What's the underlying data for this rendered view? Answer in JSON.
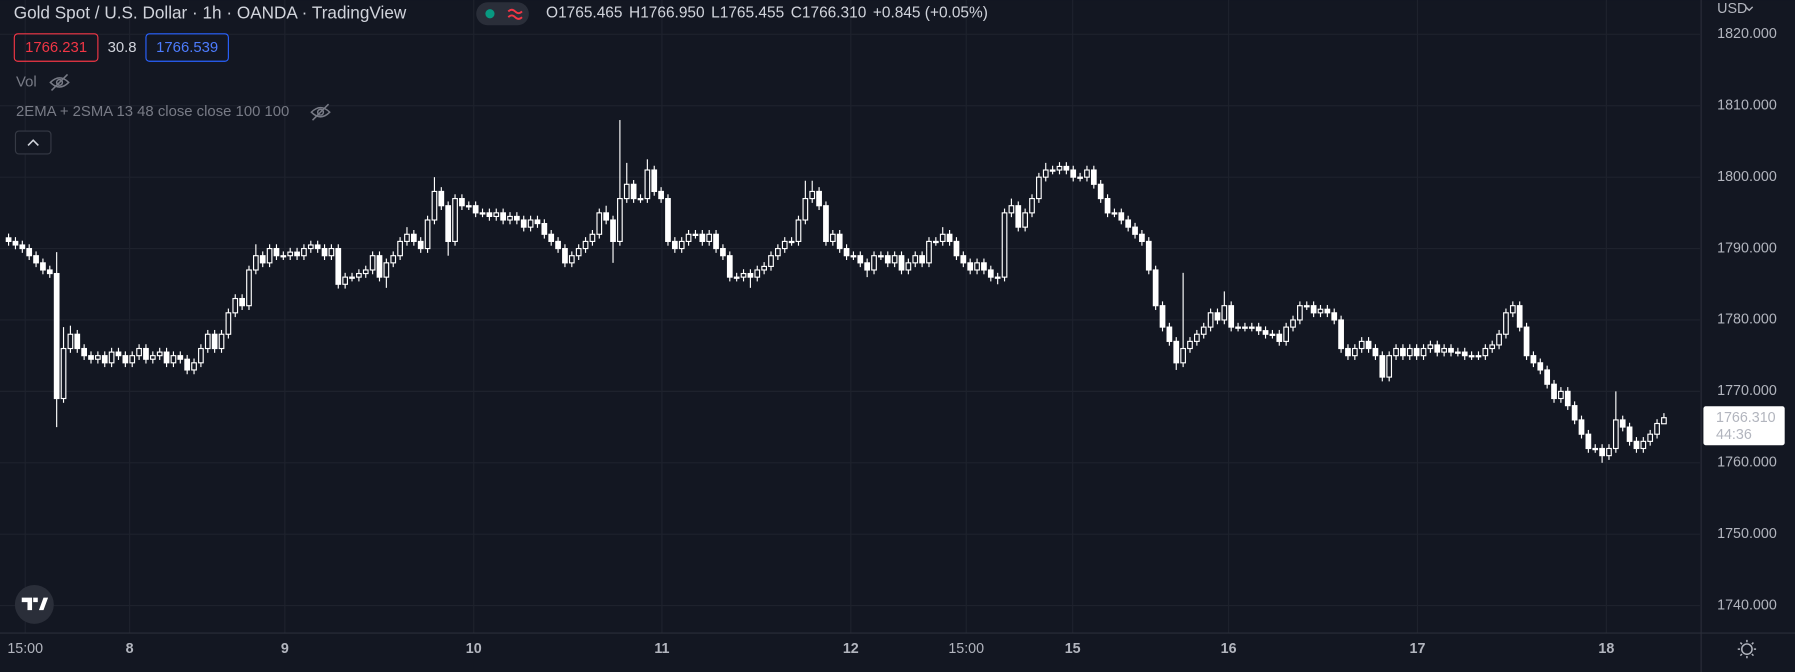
{
  "header": {
    "title": "Gold Spot / U.S. Dollar · 1h · OANDA · TradingView",
    "ohlc": [
      {
        "label": "O",
        "value": "1765.465"
      },
      {
        "label": "H",
        "value": "1766.950"
      },
      {
        "label": "L",
        "value": "1765.455"
      },
      {
        "label": "C",
        "value": "1766.310"
      }
    ],
    "change": "+0.845 (+0.05%)"
  },
  "indicators": {
    "values": [
      "1766.231",
      "30.8",
      "1766.539"
    ],
    "volume": "Vol",
    "moving_averages": "2EMA + 2SMA 13 48 close close 100 100"
  },
  "chart_data": {
    "type": "candlestick",
    "currency": "USD",
    "open": [
      1791.5,
      1791,
      1790.5,
      1790,
      1789,
      1788,
      1787,
      1786.5,
      1769,
      1776,
      1778,
      1776,
      1775,
      1774.5,
      1775,
      1774,
      1775.5,
      1775,
      1774,
      1775,
      1776,
      1774.5,
      1775,
      1775.5,
      1774,
      1775,
      1774.5,
      1773,
      1774,
      1776,
      1778,
      1776,
      1778,
      1781,
      1783,
      1782,
      1787,
      1789,
      1788,
      1790,
      1789,
      1789,
      1789.5,
      1789,
      1790,
      1790.5,
      1790,
      1789,
      1790,
      1785,
      1786,
      1786,
      1786.5,
      1787,
      1789,
      1786,
      1788,
      1789,
      1791,
      1792,
      1791,
      1790,
      1794,
      1798,
      1796,
      1791,
      1797,
      1796,
      1796,
      1795,
      1795,
      1794.5,
      1795,
      1794,
      1794.5,
      1794,
      1793,
      1794,
      1793.5,
      1792,
      1791,
      1790,
      1788,
      1789,
      1790,
      1791,
      1792,
      1795,
      1794,
      1791,
      1797,
      1799,
      1797,
      1797,
      1801,
      1798,
      1797,
      1791,
      1790,
      1791,
      1792,
      1792,
      1791,
      1792,
      1790,
      1789,
      1786,
      1786,
      1786.5,
      1786,
      1787,
      1787.5,
      1789,
      1790,
      1791,
      1791,
      1794,
      1797,
      1798,
      1796,
      1791,
      1792,
      1790,
      1789,
      1789,
      1788,
      1787,
      1789,
      1789,
      1788,
      1789,
      1787,
      1788,
      1789,
      1788,
      1791,
      1791,
      1792,
      1791,
      1789,
      1788,
      1787,
      1788,
      1787,
      1786,
      1786,
      1795,
      1796,
      1793,
      1795,
      1797,
      1800,
      1801,
      1801,
      1801.5,
      1801,
      1800,
      1800,
      1801,
      1799,
      1797,
      1795,
      1795,
      1794,
      1793,
      1792,
      1791,
      1787,
      1782,
      1779,
      1777,
      1774,
      1776,
      1777,
      1778,
      1779,
      1781,
      1780,
      1782,
      1779,
      1779,
      1779,
      1779,
      1778.5,
      1778,
      1778,
      1777,
      1779,
      1780,
      1782,
      1782,
      1781,
      1781.5,
      1781,
      1780,
      1776,
      1775,
      1776,
      1777,
      1776,
      1775,
      1772,
      1775,
      1776,
      1775,
      1776,
      1775,
      1776,
      1776.5,
      1775.5,
      1776,
      1775.5,
      1775.5,
      1775,
      1775,
      1775,
      1776,
      1776.5,
      1778,
      1781,
      1782,
      1779,
      1775,
      1774,
      1773,
      1771,
      1769,
      1770,
      1768,
      1766,
      1764,
      1762,
      1762,
      1761,
      1762,
      1766,
      1765,
      1763,
      1762,
      1763,
      1764,
      1765.465
    ],
    "high": [
      1792.1,
      1791.6,
      1791.1,
      1790.6,
      1789.6,
      1788.6,
      1787.6,
      1789.5,
      1779,
      1779.2,
      1778.6,
      1776.6,
      1775.6,
      1775.6,
      1775.6,
      1776.1,
      1776.1,
      1775.6,
      1775.6,
      1776.6,
      1776.6,
      1775.6,
      1776.1,
      1776.1,
      1775.6,
      1775.6,
      1775.1,
      1774.6,
      1776.6,
      1778.6,
      1778.6,
      1778.6,
      1781.6,
      1783.6,
      1783.6,
      1787.6,
      1790.6,
      1789.6,
      1790.6,
      1790.6,
      1789.6,
      1790.1,
      1790.1,
      1790.6,
      1791.1,
      1791.1,
      1790.6,
      1790.6,
      1790.6,
      1786.6,
      1786.6,
      1787.1,
      1787.6,
      1789.6,
      1789.6,
      1788.6,
      1789.6,
      1791.6,
      1793,
      1792.6,
      1791.6,
      1794.6,
      1800,
      1798.6,
      1796.6,
      1797.6,
      1797.6,
      1796.6,
      1796.6,
      1795.6,
      1795.6,
      1795.6,
      1795.6,
      1795.1,
      1795.1,
      1794.6,
      1794.6,
      1794.6,
      1794.1,
      1792.6,
      1791.6,
      1790.6,
      1789.6,
      1790.6,
      1791.6,
      1792.6,
      1795.6,
      1796,
      1794.6,
      1808,
      1802,
      1799.6,
      1797.6,
      1802.5,
      1801.6,
      1798.6,
      1797.6,
      1791.6,
      1791.6,
      1792.6,
      1792.6,
      1792.6,
      1792.6,
      1792.6,
      1790.6,
      1789.6,
      1786.6,
      1787.1,
      1787.1,
      1787.6,
      1788.1,
      1789.6,
      1790.6,
      1791.6,
      1791.6,
      1794.6,
      1799.5,
      1799.5,
      1798.6,
      1796.6,
      1792.6,
      1792.6,
      1790.6,
      1789.6,
      1789.6,
      1788.6,
      1789.6,
      1789.6,
      1789.6,
      1789.6,
      1789.6,
      1788.6,
      1789.6,
      1789.6,
      1791.6,
      1791.6,
      1793,
      1792.6,
      1791.6,
      1789.6,
      1788.6,
      1788.6,
      1788.6,
      1787.6,
      1786.6,
      1795.6,
      1797,
      1796.6,
      1795.6,
      1797.6,
      1800.6,
      1802,
      1801.6,
      1802.1,
      1802.1,
      1801.6,
      1800.6,
      1801.6,
      1801.6,
      1799.6,
      1797.6,
      1795.6,
      1795.6,
      1794.6,
      1793.6,
      1792.6,
      1791.6,
      1787.6,
      1782.6,
      1779.6,
      1777.6,
      1786.6,
      1777.6,
      1778.6,
      1779.6,
      1781.6,
      1781.6,
      1784,
      1782.6,
      1779.6,
      1779.6,
      1779.6,
      1779.6,
      1779.1,
      1778.6,
      1778.6,
      1779.6,
      1780.6,
      1782.6,
      1782.6,
      1782.6,
      1782.1,
      1782.1,
      1781.6,
      1780.6,
      1776.6,
      1776.6,
      1777.6,
      1777.6,
      1776.6,
      1775.6,
      1775.6,
      1776.6,
      1776.6,
      1776.6,
      1776.6,
      1776.6,
      1777.1,
      1777.1,
      1776.6,
      1776.6,
      1776.1,
      1776.1,
      1775.6,
      1775.6,
      1776.6,
      1777.1,
      1778.6,
      1781.6,
      1782.6,
      1782.6,
      1779.6,
      1775.6,
      1774.6,
      1773.6,
      1771.6,
      1770.6,
      1770.6,
      1768.6,
      1766.6,
      1764.6,
      1762.6,
      1762.6,
      1762.6,
      1770,
      1766.6,
      1765.6,
      1763.6,
      1763.6,
      1764.6,
      1766.1,
      1766.95
    ],
    "low": [
      1790.4,
      1789.9,
      1789.4,
      1788.4,
      1787.4,
      1786.4,
      1785.9,
      1765,
      1768.4,
      1775.4,
      1775.4,
      1774.4,
      1773.9,
      1773.9,
      1773.4,
      1773.4,
      1774.4,
      1773.4,
      1773.4,
      1774.4,
      1773.9,
      1773.9,
      1774.4,
      1773.4,
      1773.4,
      1773.9,
      1772.4,
      1772.4,
      1773.4,
      1775.4,
      1775.4,
      1775.4,
      1777.4,
      1780.4,
      1781.4,
      1781.4,
      1786.4,
      1787.4,
      1787.4,
      1788.4,
      1788.4,
      1788.4,
      1788.4,
      1788.4,
      1789.4,
      1789.4,
      1788.4,
      1788.4,
      1784.4,
      1784.4,
      1785.4,
      1785.4,
      1785.9,
      1786.4,
      1785.4,
      1784.5,
      1787.4,
      1788.4,
      1790.4,
      1790.4,
      1789.4,
      1789.4,
      1793.4,
      1795.4,
      1789,
      1790.4,
      1795.4,
      1795.4,
      1794.4,
      1794.4,
      1793.9,
      1793.9,
      1793.4,
      1793.4,
      1793.4,
      1792.4,
      1792.4,
      1792.9,
      1791.4,
      1790.4,
      1789.4,
      1787.4,
      1787.4,
      1788.4,
      1789.4,
      1790.4,
      1791.4,
      1793.4,
      1788,
      1790.4,
      1796.4,
      1796.4,
      1796.4,
      1796.4,
      1797.4,
      1796.4,
      1790.4,
      1789.4,
      1789.4,
      1790.4,
      1791.4,
      1790.4,
      1790.4,
      1789.4,
      1788.4,
      1785.4,
      1785.4,
      1785.4,
      1784.5,
      1785.4,
      1786.4,
      1786.9,
      1788.4,
      1789.4,
      1790.4,
      1790.4,
      1793.4,
      1796.4,
      1795.4,
      1790.4,
      1790.4,
      1789.4,
      1788.4,
      1788.4,
      1787.4,
      1786,
      1786.4,
      1788.4,
      1787.4,
      1787.4,
      1786.4,
      1786.4,
      1787.4,
      1787.4,
      1787.4,
      1790.4,
      1790.4,
      1790.4,
      1788.4,
      1787.4,
      1786.4,
      1786.4,
      1786.4,
      1785.4,
      1785,
      1785.4,
      1794.4,
      1792.4,
      1792.4,
      1794.4,
      1796.4,
      1799.4,
      1800.4,
      1800.4,
      1800.4,
      1799.4,
      1799.4,
      1799.4,
      1798.4,
      1796.4,
      1794.4,
      1794.4,
      1793.4,
      1792.4,
      1791.4,
      1790.4,
      1786.4,
      1781.4,
      1778.4,
      1776.4,
      1773,
      1773.4,
      1775.4,
      1776.4,
      1777.4,
      1778.4,
      1779.4,
      1779.4,
      1778.4,
      1778.4,
      1778.4,
      1778.4,
      1777.9,
      1777.4,
      1777.4,
      1776.4,
      1776.4,
      1778.4,
      1779.4,
      1781.4,
      1780.4,
      1780.4,
      1780.4,
      1779.4,
      1775.4,
      1774.4,
      1774.4,
      1775.4,
      1775.4,
      1774.4,
      1771.4,
      1771.4,
      1774.4,
      1774.4,
      1774.4,
      1774.4,
      1774.4,
      1775.4,
      1774.9,
      1774.9,
      1774.9,
      1774.9,
      1774.4,
      1774.4,
      1774.4,
      1774.4,
      1775.4,
      1775.9,
      1777.4,
      1780.4,
      1778.4,
      1774.4,
      1773.4,
      1772.4,
      1770.4,
      1768.4,
      1768.4,
      1767.4,
      1765.4,
      1763.4,
      1761.4,
      1761.4,
      1760,
      1760.4,
      1761.4,
      1764.4,
      1762.4,
      1761.4,
      1761.4,
      1762.4,
      1763.4,
      1765.455
    ],
    "close": [
      1791,
      1790.5,
      1790,
      1789,
      1788,
      1787,
      1786.5,
      1769,
      1776,
      1778,
      1776,
      1775,
      1774.5,
      1775,
      1774,
      1775.5,
      1775,
      1774,
      1775,
      1776,
      1774.5,
      1775,
      1775.5,
      1774,
      1775,
      1774.5,
      1773,
      1774,
      1776,
      1778,
      1776,
      1778,
      1781,
      1783,
      1782,
      1787,
      1789,
      1788,
      1790,
      1789,
      1789,
      1789.5,
      1789,
      1790,
      1790.5,
      1790,
      1789,
      1790,
      1785,
      1786,
      1786,
      1786.5,
      1787,
      1789,
      1786,
      1788,
      1789,
      1791,
      1792,
      1791,
      1790,
      1794,
      1798,
      1796,
      1791,
      1797,
      1796,
      1796,
      1795,
      1795,
      1794.5,
      1795,
      1794,
      1794.5,
      1794,
      1793,
      1794,
      1793.5,
      1792,
      1791,
      1790,
      1788,
      1789,
      1790,
      1791,
      1792,
      1795,
      1794,
      1791,
      1797,
      1799,
      1797,
      1797,
      1801,
      1798,
      1797,
      1791,
      1790,
      1791,
      1792,
      1792,
      1791,
      1792,
      1790,
      1789,
      1786,
      1786,
      1786.5,
      1786,
      1787,
      1787.5,
      1789,
      1790,
      1791,
      1791,
      1794,
      1797,
      1798,
      1796,
      1791,
      1792,
      1790,
      1789,
      1789,
      1788,
      1787,
      1789,
      1789,
      1788,
      1789,
      1787,
      1788,
      1789,
      1788,
      1791,
      1791,
      1792,
      1791,
      1789,
      1788,
      1787,
      1788,
      1787,
      1786,
      1786,
      1795,
      1796,
      1793,
      1795,
      1797,
      1800,
      1801,
      1801,
      1801.5,
      1801,
      1800,
      1800,
      1801,
      1799,
      1797,
      1795,
      1795,
      1794,
      1793,
      1792,
      1791,
      1787,
      1782,
      1779,
      1777,
      1774,
      1776,
      1777,
      1778,
      1779,
      1781,
      1780,
      1782,
      1779,
      1779,
      1779,
      1779,
      1778.5,
      1778,
      1778,
      1777,
      1779,
      1780,
      1782,
      1782,
      1781,
      1781.5,
      1781,
      1780,
      1776,
      1775,
      1776,
      1777,
      1776,
      1775,
      1772,
      1775,
      1776,
      1775,
      1776,
      1775,
      1776,
      1776.5,
      1775.5,
      1776,
      1775.5,
      1775.5,
      1775,
      1775,
      1775,
      1776,
      1776.5,
      1778,
      1781,
      1782,
      1779,
      1775,
      1774,
      1773,
      1771,
      1769,
      1770,
      1768,
      1766,
      1764,
      1762,
      1762,
      1761,
      1762,
      1766,
      1765,
      1763,
      1762,
      1763,
      1764,
      1765.5,
      1766.31
    ],
    "xlim": [
      -1.17,
      246.33
    ],
    "xticks": [
      {
        "value": 2.5,
        "label": "15:00"
      },
      {
        "value": 17.7,
        "label": "8"
      },
      {
        "value": 40.3,
        "label": "9"
      },
      {
        "value": 67.8,
        "label": "10"
      },
      {
        "value": 95.2,
        "label": "11"
      },
      {
        "value": 122.7,
        "label": "12"
      },
      {
        "value": 139.5,
        "label": "15:00"
      },
      {
        "value": 155,
        "label": "15"
      },
      {
        "value": 177.7,
        "label": "16"
      },
      {
        "value": 205.2,
        "label": "17"
      },
      {
        "value": 232.7,
        "label": "18"
      }
    ],
    "ylim": [
      1736.15,
      1824.81
    ],
    "yticks": [
      {
        "value": 1740,
        "label": "1740.000"
      },
      {
        "value": 1750,
        "label": "1750.000"
      },
      {
        "value": 1760,
        "label": "1760.000"
      },
      {
        "value": 1770,
        "label": "1770.000"
      },
      {
        "value": 1780,
        "label": "1780.000"
      },
      {
        "value": 1790,
        "label": "1790.000"
      },
      {
        "value": 1800,
        "label": "1800.000"
      },
      {
        "value": 1810,
        "label": "1810.000"
      },
      {
        "value": 1820,
        "label": "1820.000"
      }
    ],
    "grid": true,
    "up_fill": "#131722",
    "down_fill": "#ffffff",
    "border_color": "#ffffff",
    "last_price": {
      "value": 1766.31,
      "label": "1766.310",
      "countdown": "44:36"
    }
  }
}
